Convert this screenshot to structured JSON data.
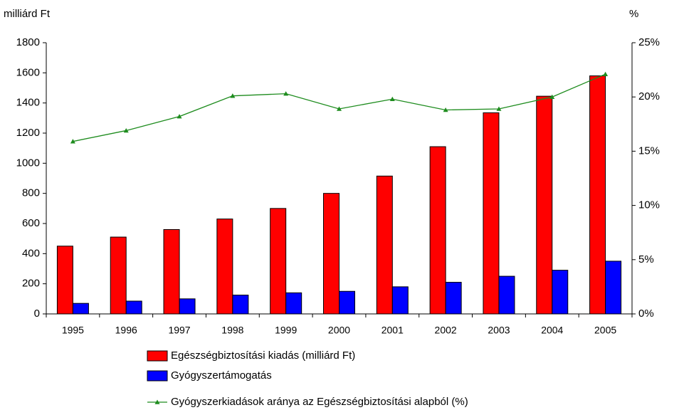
{
  "chart_data": {
    "type": "bar",
    "y_label": "milliárd Ft",
    "y2_label": "%",
    "categories": [
      "1995",
      "1996",
      "1997",
      "1998",
      "1999",
      "2000",
      "2001",
      "2002",
      "2003",
      "2004",
      "2005"
    ],
    "series": [
      {
        "name": "Egészségbiztosítási kiadás (milliárd Ft)",
        "color": "#ff0000",
        "type": "bar",
        "values": [
          450,
          510,
          560,
          630,
          700,
          800,
          915,
          1110,
          1335,
          1445,
          1580
        ]
      },
      {
        "name": "Gyógyszertámogatás",
        "color": "#0000ff",
        "type": "bar",
        "values": [
          70,
          85,
          100,
          125,
          140,
          150,
          180,
          210,
          250,
          290,
          350
        ]
      },
      {
        "name": "Gyógyszerkiadások aránya az Egészségbiztosítási alapból (%)",
        "color": "#1e8c1e",
        "type": "line",
        "axis": "y2",
        "values": [
          15.9,
          16.9,
          18.2,
          20.1,
          20.3,
          18.9,
          19.8,
          18.8,
          18.9,
          20.0,
          22.1
        ]
      }
    ],
    "ylim": [
      0,
      1800
    ],
    "yticks": [
      0,
      200,
      400,
      600,
      800,
      1000,
      1200,
      1400,
      1600,
      1800
    ],
    "y2lim": [
      0,
      25
    ],
    "y2ticks": [
      {
        "value": 0,
        "label": "0%"
      },
      {
        "value": 5,
        "label": "5%"
      },
      {
        "value": 10,
        "label": "10%"
      },
      {
        "value": 15,
        "label": "15%"
      },
      {
        "value": 20,
        "label": "20%"
      },
      {
        "value": 25,
        "label": "25%"
      }
    ],
    "grid": false,
    "legend": "bottom"
  }
}
